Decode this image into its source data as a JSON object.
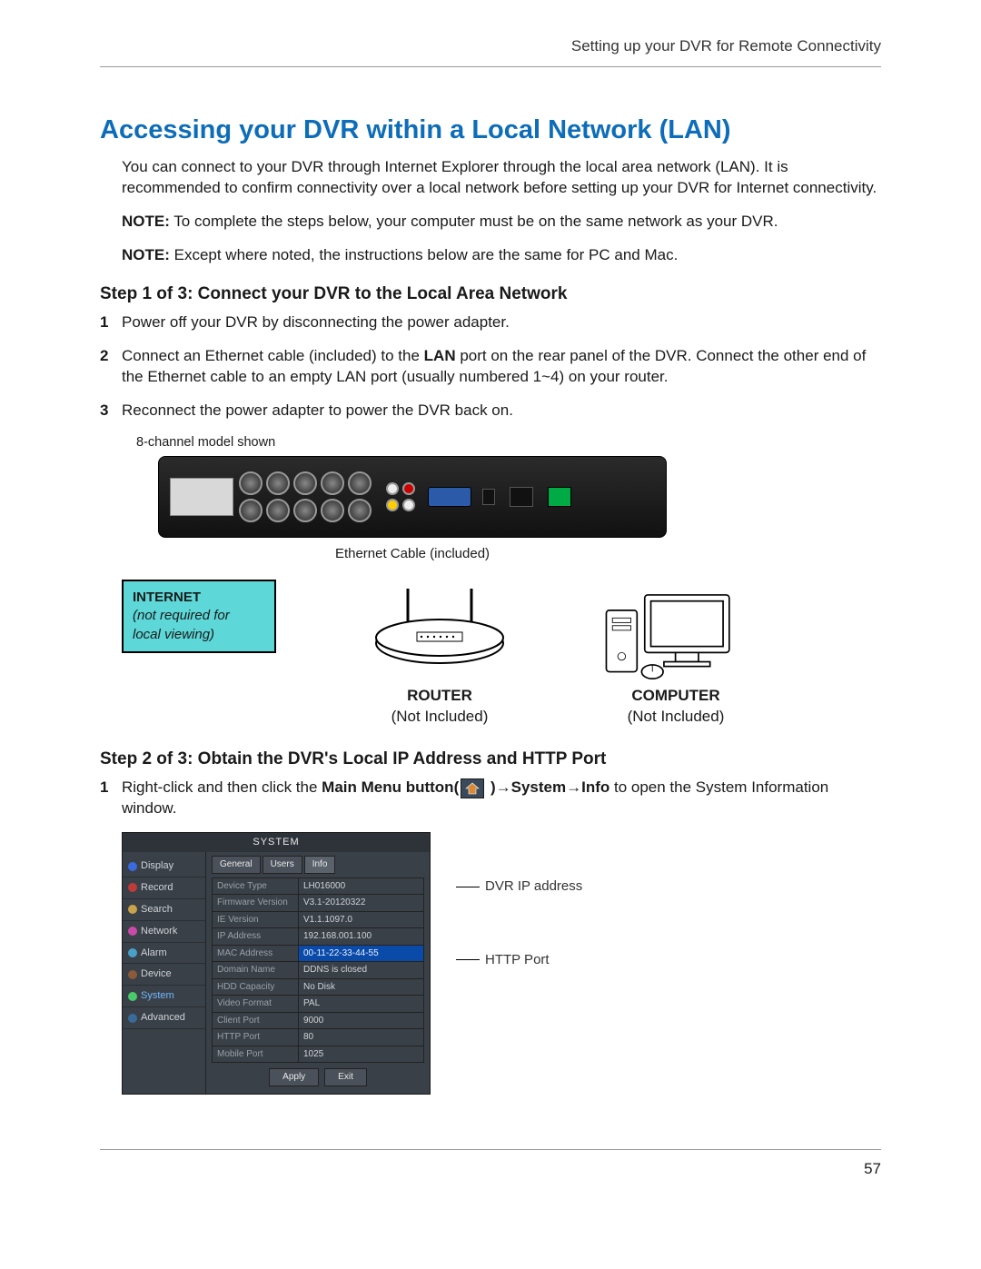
{
  "header": {
    "breadcrumb": "Setting up your DVR for Remote Connectivity"
  },
  "title": "Accessing your DVR within a Local Network (LAN)",
  "intro": "You can connect to your DVR through Internet Explorer through the local area network (LAN). It is recommended to confirm connectivity over a local network before setting up your DVR for Internet connectivity.",
  "note1_prefix": "NOTE:",
  "note1": " To complete the steps below, your computer must be on the same network as your DVR.",
  "note2_prefix": "NOTE:",
  "note2": " Except where noted, the instructions below are the same for PC and Mac.",
  "step1": {
    "title": "Step 1 of 3: Connect your DVR to the Local Area Network",
    "items": [
      {
        "n": "1",
        "text": "Power off your DVR by disconnecting the power adapter."
      },
      {
        "n": "2",
        "text_pre": "Connect an Ethernet cable (included) to the ",
        "bold": "LAN",
        "text_post": " port on the rear panel of the DVR. Connect the other end of the Ethernet cable to an empty LAN port (usually numbered 1~4) on your router."
      },
      {
        "n": "3",
        "text": "Reconnect the power adapter to power the DVR back on."
      }
    ],
    "fig_caption": "8-channel model shown",
    "eth_label": "Ethernet Cable (included)",
    "internet_box": {
      "title": "INTERNET",
      "sub1": "(not required for",
      "sub2": "local viewing)"
    },
    "router": {
      "label": "ROUTER",
      "note": "(Not Included)"
    },
    "computer": {
      "label": "COMPUTER",
      "note": "(Not Included)"
    },
    "colors": {
      "internet_bg": "#5dd7d7"
    }
  },
  "step2": {
    "title": "Step 2 of 3: Obtain the DVR's Local IP Address and HTTP Port",
    "item1_pre": "Right-click and then click the ",
    "item1_bold1": "Main Menu button(",
    "item1_mid": " )→",
    "item1_bold2": "System→Info",
    "item1_post": " to open the System Information window.",
    "window": {
      "title": "SYSTEM",
      "sidebar": [
        {
          "label": "Display",
          "color": "#3a6adf"
        },
        {
          "label": "Record",
          "color": "#c03a3a"
        },
        {
          "label": "Search",
          "color": "#c9a24a"
        },
        {
          "label": "Network",
          "color": "#c94aa8"
        },
        {
          "label": "Alarm",
          "color": "#49a0c9"
        },
        {
          "label": "Device",
          "color": "#8a5a3a"
        },
        {
          "label": "System",
          "color": "#49c96a",
          "selected": true
        },
        {
          "label": "Advanced",
          "color": "#3a6a9a"
        }
      ],
      "tabs": [
        "General",
        "Users",
        "Info"
      ],
      "active_tab": 2,
      "rows": [
        {
          "k": "Device Type",
          "v": "LH016000"
        },
        {
          "k": "Firmware Version",
          "v": "V3.1-20120322"
        },
        {
          "k": "IE Version",
          "v": "V1.1.1097.0"
        },
        {
          "k": "IP Address",
          "v": "192.168.001.100"
        },
        {
          "k": "MAC Address",
          "v": "00-11-22-33-44-55",
          "hl": true
        },
        {
          "k": "Domain Name",
          "v": "DDNS is closed"
        },
        {
          "k": "HDD Capacity",
          "v": "No Disk"
        },
        {
          "k": "Video Format",
          "v": "PAL"
        },
        {
          "k": "Client Port",
          "v": "9000"
        },
        {
          "k": "HTTP Port",
          "v": "80"
        },
        {
          "k": "Mobile Port",
          "v": "1025"
        }
      ],
      "buttons": [
        "Apply",
        "Exit"
      ]
    },
    "callouts": {
      "ip": "DVR IP address",
      "http": "HTTP Port"
    }
  },
  "footer": {
    "page": "57"
  }
}
